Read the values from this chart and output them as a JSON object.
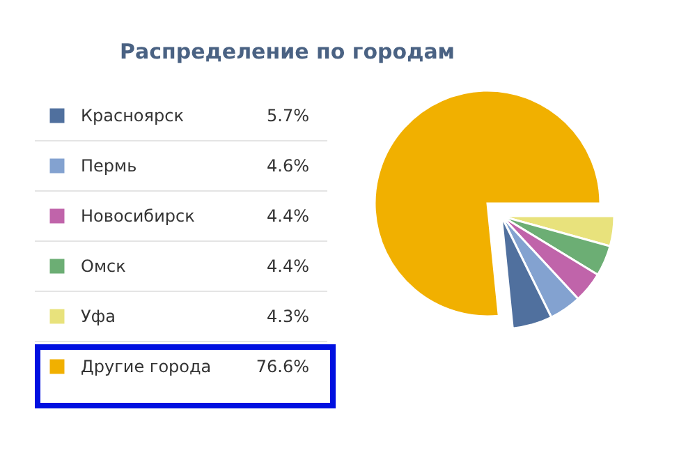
{
  "chart_data": {
    "type": "pie",
    "title": "Распределение по городам",
    "categories": [
      "Красноярск",
      "Пермь",
      "Новосибирск",
      "Омск",
      "Уфа",
      "Другие города"
    ],
    "values": [
      5.7,
      4.6,
      4.4,
      4.4,
      4.3,
      76.6
    ],
    "value_labels": [
      "5.7%",
      "4.6%",
      "4.4%",
      "4.4%",
      "4.3%",
      "76.6%"
    ],
    "colors": [
      "#50709e",
      "#83a2d0",
      "#c064aa",
      "#6cae74",
      "#e8e27c",
      "#f1b000"
    ],
    "legend": "left"
  }
}
